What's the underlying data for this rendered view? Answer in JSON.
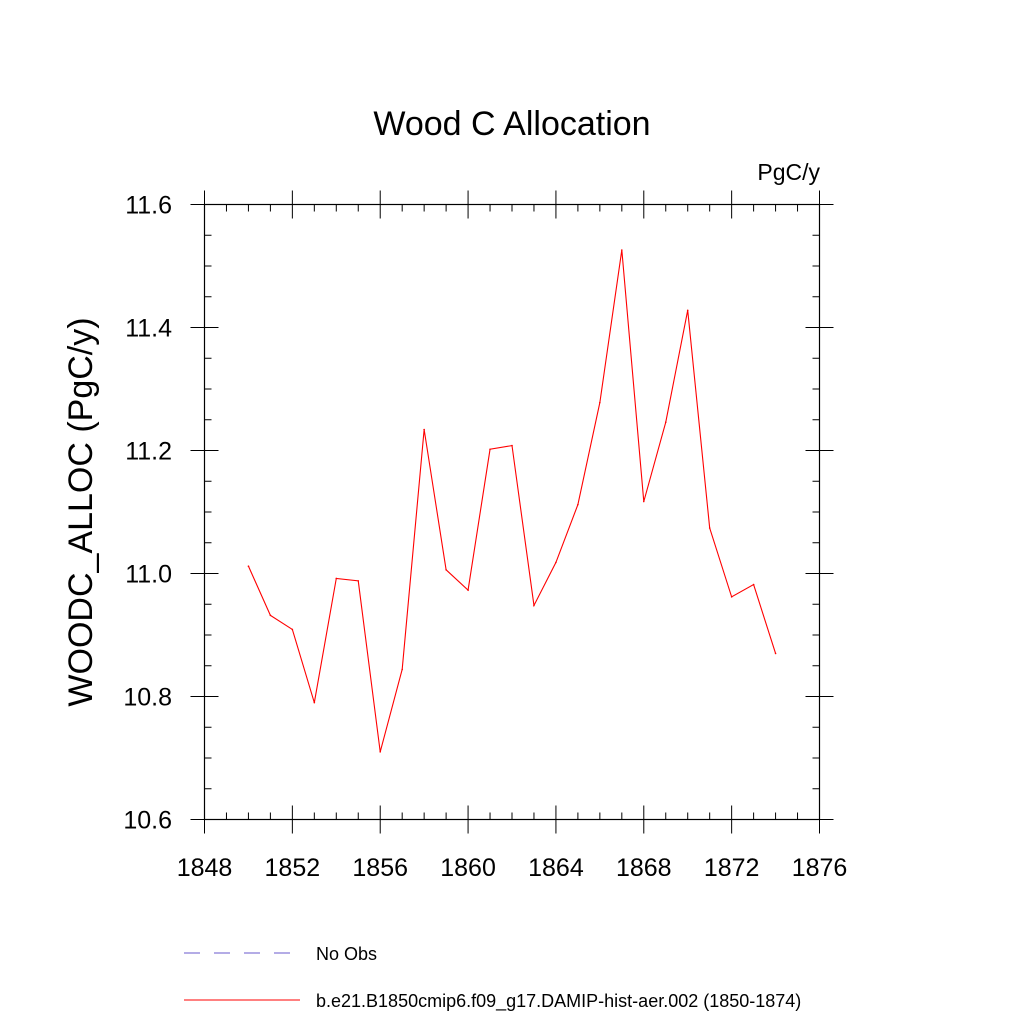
{
  "chart_data": {
    "type": "line",
    "title": "Wood C Allocation",
    "units_label": "PgC/y",
    "ylabel": "WOODC_ALLOC  (PgC/y)",
    "xlabel": "",
    "xlim": [
      1848,
      1876
    ],
    "ylim": [
      10.6,
      11.6
    ],
    "x_ticks": [
      "1848",
      "1852",
      "1856",
      "1860",
      "1864",
      "1868",
      "1872",
      "1876"
    ],
    "y_ticks": [
      "10.6",
      "10.8",
      "11.0",
      "11.2",
      "11.4",
      "11.6"
    ],
    "grid": false,
    "legend_position": "bottom",
    "legend": [
      {
        "label": "No Obs",
        "color": "#6a5acd",
        "style": "dashed"
      },
      {
        "label": "b.e21.B1850cmip6.f09_g17.DAMIP-hist-aer.002 (1850-1874)",
        "color": "#ff0000",
        "style": "solid"
      }
    ],
    "series": [
      {
        "name": "b.e21.B1850cmip6.f09_g17.DAMIP-hist-aer.002 (1850-1874)",
        "color": "#ff0000",
        "x": [
          1850,
          1851,
          1852,
          1853,
          1854,
          1855,
          1856,
          1857,
          1858,
          1859,
          1860,
          1861,
          1862,
          1863,
          1864,
          1865,
          1866,
          1867,
          1868,
          1869,
          1870,
          1871,
          1872,
          1873,
          1874
        ],
        "y": [
          11.012,
          10.932,
          10.909,
          10.79,
          10.992,
          10.988,
          10.71,
          10.844,
          11.234,
          11.006,
          10.973,
          11.202,
          11.208,
          10.948,
          11.018,
          11.112,
          11.278,
          11.526,
          11.117,
          11.246,
          11.428,
          11.074,
          10.962,
          10.982,
          10.87
        ]
      }
    ]
  }
}
